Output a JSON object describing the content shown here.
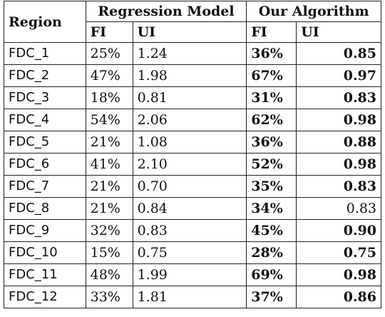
{
  "header": {
    "region": "Region",
    "group1": "Regression Model",
    "group2": "Our Algorithm",
    "sub": [
      "FI",
      "UI",
      "FI",
      "UI"
    ]
  },
  "rows": [
    {
      "region": "FDC_1",
      "rm_fi": "25%",
      "rm_ui": "1.24",
      "oa_fi": "36%",
      "oa_ui": "0.85"
    },
    {
      "region": "FDC_2",
      "rm_fi": "47%",
      "rm_ui": "1.98",
      "oa_fi": "67%",
      "oa_ui": "0.97"
    },
    {
      "region": "FDC_3",
      "rm_fi": "18%",
      "rm_ui": "0.81",
      "oa_fi": "31%",
      "oa_ui": "0.83"
    },
    {
      "region": "FDC_4",
      "rm_fi": "54%",
      "rm_ui": "2.06",
      "oa_fi": "62%",
      "oa_ui": "0.98"
    },
    {
      "region": "FDC_5",
      "rm_fi": "21%",
      "rm_ui": "1.08",
      "oa_fi": "36%",
      "oa_ui": "0.88"
    },
    {
      "region": "FDC_6",
      "rm_fi": "41%",
      "rm_ui": "2.10",
      "oa_fi": "52%",
      "oa_ui": "0.98"
    },
    {
      "region": "FDC_7",
      "rm_fi": "21%",
      "rm_ui": "0.70",
      "oa_fi": "35%",
      "oa_ui": "0.83"
    },
    {
      "region": "FDC_8",
      "rm_fi": "21%",
      "rm_ui": "0.84",
      "oa_fi": "34%",
      "oa_ui": "0.83"
    },
    {
      "region": "FDC_9",
      "rm_fi": "32%",
      "rm_ui": "0.83",
      "oa_fi": "45%",
      "oa_ui": "0.90"
    },
    {
      "region": "FDC_10",
      "rm_fi": "15%",
      "rm_ui": "0.75",
      "oa_fi": "28%",
      "oa_ui": "0.75"
    },
    {
      "region": "FDC_11",
      "rm_fi": "48%",
      "rm_ui": "1.99",
      "oa_fi": "69%",
      "oa_ui": "0.98"
    },
    {
      "region": "FDC_12",
      "rm_fi": "33%",
      "rm_ui": "1.81",
      "oa_fi": "37%",
      "oa_ui": "0.86"
    }
  ],
  "bold_oa_ui": [
    true,
    true,
    true,
    true,
    true,
    true,
    true,
    false,
    true,
    true,
    true,
    true
  ]
}
